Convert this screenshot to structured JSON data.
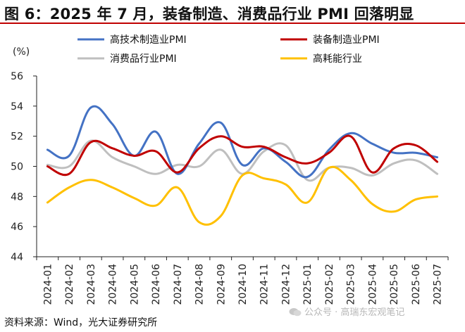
{
  "header": {
    "title": "图 6：2025 年 7 月，装备制造、消费品行业 PMI 回落明显"
  },
  "footer": {
    "source": "资料来源：Wind，光大证券研究所",
    "watermark": "公众号 · 高瑞东宏观笔记"
  },
  "chart_data": {
    "type": "line",
    "ylabel": "(%)",
    "ylim": [
      44,
      56
    ],
    "yticks": [
      44,
      46,
      48,
      50,
      52,
      54,
      56
    ],
    "grid": false,
    "legend_placement": "top",
    "categories": [
      "2024-01",
      "2024-02",
      "2024-03",
      "2024-04",
      "2024-05",
      "2024-06",
      "2024-07",
      "2024-08",
      "2024-09",
      "2024-10",
      "2024-11",
      "2024-12",
      "2025-01",
      "2025-02",
      "2025-03",
      "2025-04",
      "2025-05",
      "2025-06",
      "2025-07"
    ],
    "series": [
      {
        "name": "高技术制造业PMI",
        "color": "#4472c4",
        "values": [
          51.1,
          50.7,
          53.9,
          52.8,
          50.7,
          52.3,
          49.5,
          51.5,
          52.9,
          50.1,
          51.2,
          50.3,
          49.3,
          51.1,
          52.2,
          51.5,
          50.9,
          50.9,
          50.6
        ]
      },
      {
        "name": "装备制造业PMI",
        "color": "#c00000",
        "values": [
          50.0,
          49.5,
          51.6,
          51.2,
          50.7,
          51.0,
          49.6,
          51.2,
          52.0,
          51.3,
          51.3,
          50.6,
          50.2,
          50.9,
          52.0,
          49.6,
          51.2,
          51.4,
          50.3
        ]
      },
      {
        "name": "消费品行业PMI",
        "color": "#bfbfbf",
        "values": [
          50.1,
          50.0,
          51.7,
          50.6,
          50.0,
          49.5,
          50.1,
          50.0,
          51.1,
          49.5,
          51.0,
          51.4,
          49.1,
          49.9,
          49.9,
          49.4,
          50.2,
          50.4,
          49.5
        ]
      },
      {
        "name": "高耗能行业",
        "color": "#ffc000",
        "values": [
          47.6,
          48.6,
          49.1,
          48.6,
          47.9,
          47.4,
          48.6,
          46.3,
          46.7,
          49.4,
          49.2,
          48.8,
          47.6,
          49.9,
          49.1,
          47.5,
          47.0,
          47.8,
          48.0
        ]
      }
    ]
  }
}
